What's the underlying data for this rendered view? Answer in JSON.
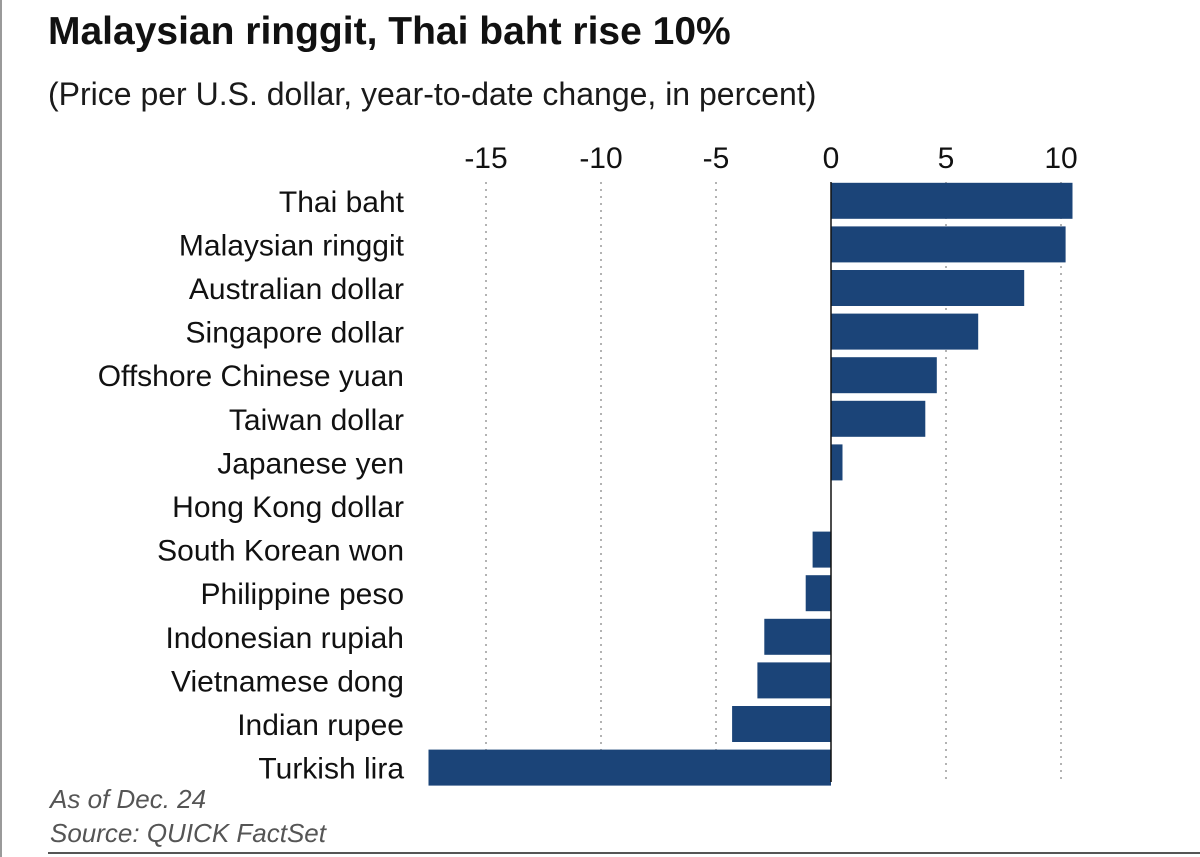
{
  "chart_data": {
    "type": "bar",
    "orientation": "horizontal",
    "title": "Malaysian ringgit, Thai baht rise 10%",
    "subtitle": "(Price per U.S. dollar, year-to-date change, in percent)",
    "categories": [
      "Thai baht",
      "Malaysian ringgit",
      "Australian dollar",
      "Singapore dollar",
      "Offshore Chinese yuan",
      "Taiwan dollar",
      "Japanese yen",
      "Hong Kong dollar",
      "South Korean won",
      "Philippine peso",
      "Indonesian rupiah",
      "Vietnamese dong",
      "Indian rupee",
      "Turkish lira"
    ],
    "values": [
      10.5,
      10.2,
      8.4,
      6.4,
      4.6,
      4.1,
      0.5,
      0.0,
      -0.8,
      -1.1,
      -2.9,
      -3.2,
      -4.3,
      -17.5
    ],
    "xticks": [
      -15,
      -10,
      -5,
      0,
      5,
      10
    ],
    "xtick_labels": [
      "-15",
      "-10",
      "-5",
      "0",
      "5",
      "10"
    ],
    "xlim": [
      -17.5,
      10.5
    ],
    "grid": "vertical dotted",
    "axis_position": "top",
    "bar_color": "#1b4478"
  },
  "footer": {
    "as_of": "As of Dec. 24",
    "source": "Source: QUICK FactSet"
  }
}
